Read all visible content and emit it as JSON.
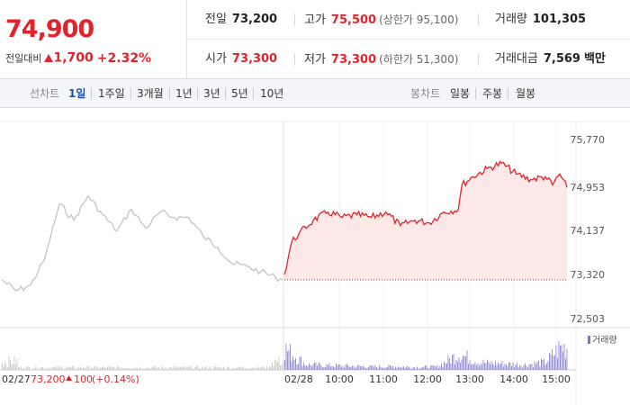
{
  "summary": {
    "current_price": "74,900",
    "change_label": "전일대비",
    "change_amount": "1,700",
    "change_rate": "+2.32%",
    "prev_close": {
      "label": "전일",
      "value": "73,200"
    },
    "high": {
      "label": "고가",
      "value": "75,500",
      "limit_label": "(상한가 95,100)"
    },
    "volume": {
      "label": "거래량",
      "value": "101,305"
    },
    "open": {
      "label": "시가",
      "value": "73,300"
    },
    "low": {
      "label": "저가",
      "value": "73,300",
      "limit_label": "(하한가 51,300)"
    },
    "trade_amount": {
      "label": "거래대금",
      "value": "7,569",
      "unit": "백만"
    }
  },
  "toolbar": {
    "line_chart_label": "선차트",
    "periods": [
      "1일",
      "1주일",
      "3개월",
      "1년",
      "3년",
      "5년",
      "10년"
    ],
    "active_period": "1일",
    "candle_chart_label": "봉차트",
    "candles": [
      "일봉",
      "주봉",
      "월봉"
    ]
  },
  "chart": {
    "y_ticks": [
      "75,770",
      "74,953",
      "74,137",
      "73,320",
      "72,503"
    ],
    "volume_legend": "거래량",
    "prev_day": {
      "date": "02/27",
      "close": "73,200",
      "change": "100",
      "rate": "(+0.14%)"
    },
    "today_label": "02/28",
    "time_labels": [
      "10:00",
      "11:00",
      "12:00",
      "13:00",
      "14:00",
      "15:00"
    ],
    "colors": {
      "up": "#e0242c",
      "prev_line": "#c4c4c4",
      "fill": "#fde8e8"
    }
  },
  "chart_data": {
    "type": "line",
    "ylim": [
      72503,
      75770
    ],
    "y_ticks": [
      75770,
      74953,
      74137,
      73320,
      72503
    ],
    "x_labels": [
      "02/28",
      "10:00",
      "11:00",
      "12:00",
      "13:00",
      "14:00",
      "15:00"
    ],
    "baseline": 73200,
    "series": [
      {
        "x": [
          "02/27 09:00",
          "02/27 09:20",
          "02/27 09:40",
          "02/27 10:00",
          "02/27 10:20",
          "02/27 10:40",
          "02/27 11:00",
          "02/27 11:20",
          "02/27 11:40",
          "02/27 12:00",
          "02/27 12:20",
          "02/27 12:40",
          "02/27 13:00",
          "02/27 13:20",
          "02/27 13:40",
          "02/27 14:00",
          "02/27 14:20",
          "02/27 14:40",
          "02/27 15:00",
          "02/27 15:20",
          "02/27 15:30"
        ],
        "values": [
          73200,
          73000,
          73100,
          73600,
          74600,
          74300,
          74750,
          74400,
          74100,
          74500,
          74150,
          74450,
          74350,
          74350,
          74000,
          73800,
          73500,
          73450,
          73350,
          73250,
          73200
        ]
      },
      {
        "x": [
          "09:00",
          "09:10",
          "09:20",
          "09:40",
          "10:00",
          "10:20",
          "10:40",
          "11:00",
          "11:20",
          "11:40",
          "12:00",
          "12:20",
          "12:40",
          "13:00",
          "13:05",
          "13:20",
          "13:40",
          "14:00",
          "14:20",
          "14:40",
          "15:00",
          "15:10",
          "15:20",
          "15:30"
        ],
        "values": [
          73300,
          73900,
          74050,
          74300,
          74450,
          74350,
          74400,
          74350,
          74450,
          74200,
          74300,
          74250,
          74450,
          74500,
          74950,
          75100,
          75250,
          75350,
          75150,
          75050,
          75100,
          74950,
          75150,
          74900
        ]
      }
    ],
    "volume": {
      "x": [
        "09:00",
        "09:30",
        "10:00",
        "10:30",
        "11:00",
        "11:30",
        "12:00",
        "12:30",
        "13:00",
        "13:30",
        "14:00",
        "14:30",
        "15:00",
        "15:20"
      ],
      "values": [
        6200,
        1500,
        1300,
        1100,
        900,
        1000,
        800,
        900,
        4600,
        2100,
        1800,
        1500,
        2200,
        6500
      ]
    }
  }
}
